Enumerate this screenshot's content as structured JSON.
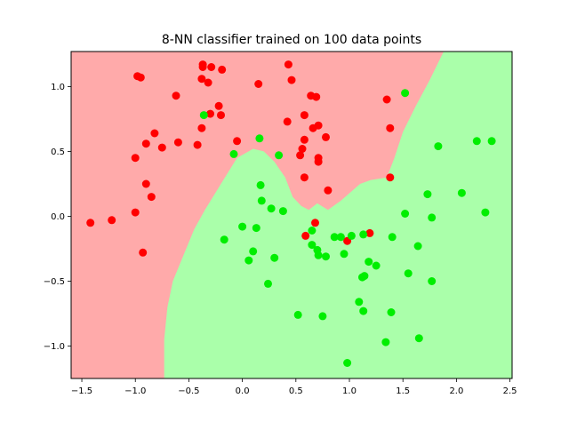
{
  "chart_data": {
    "type": "scatter",
    "title": "8-NN classifier trained on 100 data points",
    "xlabel": "",
    "ylabel": "",
    "xlim": [
      -1.6,
      2.52
    ],
    "ylim": [
      -1.25,
      1.27
    ],
    "x_ticks": [
      -1.5,
      -1.0,
      -0.5,
      0.0,
      0.5,
      1.0,
      1.5,
      2.0,
      2.5
    ],
    "x_tick_labels": [
      "−1.5",
      "−1.0",
      "−0.5",
      "0.0",
      "0.5",
      "1.0",
      "1.5",
      "2.0",
      "2.5"
    ],
    "y_ticks": [
      -1.0,
      -0.5,
      0.0,
      0.5,
      1.0
    ],
    "y_tick_labels": [
      "−1.0",
      "−0.5",
      "0.0",
      "0.5",
      "1.0"
    ],
    "grid": false,
    "legend": "none",
    "background_regions": {
      "class_0_color": "#ffaaaa",
      "class_1_color": "#aaffaa",
      "class_0_region_boundary": [
        [
          -1.6,
          -1.25
        ],
        [
          -0.73,
          -1.25
        ],
        [
          -0.73,
          -0.95
        ],
        [
          -0.7,
          -0.7
        ],
        [
          -0.65,
          -0.5
        ],
        [
          -0.55,
          -0.3
        ],
        [
          -0.45,
          -0.1
        ],
        [
          -0.35,
          0.05
        ],
        [
          -0.2,
          0.25
        ],
        [
          -0.05,
          0.45
        ],
        [
          0.1,
          0.52
        ],
        [
          0.2,
          0.5
        ],
        [
          0.3,
          0.42
        ],
        [
          0.4,
          0.3
        ],
        [
          0.47,
          0.15
        ],
        [
          0.55,
          0.08
        ],
        [
          0.62,
          0.05
        ],
        [
          0.7,
          0.1
        ],
        [
          0.8,
          0.05
        ],
        [
          0.92,
          0.12
        ],
        [
          1.1,
          0.25
        ],
        [
          1.2,
          0.28
        ],
        [
          1.35,
          0.3
        ],
        [
          1.42,
          0.45
        ],
        [
          1.5,
          0.65
        ],
        [
          1.62,
          0.85
        ],
        [
          1.75,
          1.05
        ],
        [
          1.88,
          1.27
        ],
        [
          -1.6,
          1.27
        ]
      ]
    },
    "series": [
      {
        "color": "#ff0000",
        "points": [
          [
            -1.42,
            -0.05
          ],
          [
            -1.22,
            -0.03
          ],
          [
            -1.0,
            0.03
          ],
          [
            -0.93,
            -0.28
          ],
          [
            -0.85,
            0.15
          ],
          [
            -0.9,
            0.25
          ],
          [
            -1.0,
            0.45
          ],
          [
            -0.9,
            0.56
          ],
          [
            -0.82,
            0.64
          ],
          [
            -0.75,
            0.53
          ],
          [
            -0.6,
            0.57
          ],
          [
            -0.42,
            0.55
          ],
          [
            -0.38,
            0.68
          ],
          [
            -0.3,
            0.79
          ],
          [
            -0.2,
            0.78
          ],
          [
            -0.22,
            0.85
          ],
          [
            -0.05,
            0.58
          ],
          [
            -0.62,
            0.93
          ],
          [
            -0.98,
            1.08
          ],
          [
            -0.95,
            1.07
          ],
          [
            -0.38,
            1.06
          ],
          [
            -0.37,
            1.15
          ],
          [
            -0.37,
            1.17
          ],
          [
            -0.32,
            1.03
          ],
          [
            -0.29,
            1.15
          ],
          [
            -0.19,
            1.13
          ],
          [
            0.15,
            1.02
          ],
          [
            0.43,
            1.17
          ],
          [
            0.46,
            1.05
          ],
          [
            0.42,
            0.73
          ],
          [
            0.58,
            0.78
          ],
          [
            0.64,
            0.93
          ],
          [
            0.69,
            0.92
          ],
          [
            0.66,
            0.68
          ],
          [
            0.71,
            0.7
          ],
          [
            0.58,
            0.59
          ],
          [
            0.56,
            0.52
          ],
          [
            0.54,
            0.47
          ],
          [
            0.71,
            0.45
          ],
          [
            0.71,
            0.42
          ],
          [
            0.78,
            0.61
          ],
          [
            0.58,
            0.3
          ],
          [
            0.8,
            0.2
          ],
          [
            1.35,
            0.9
          ],
          [
            1.38,
            0.68
          ],
          [
            1.38,
            0.3
          ],
          [
            0.68,
            -0.05
          ],
          [
            0.59,
            -0.15
          ],
          [
            0.98,
            -0.19
          ],
          [
            1.19,
            -0.13
          ]
        ]
      },
      {
        "color": "#00ee00",
        "points": [
          [
            -0.36,
            0.78
          ],
          [
            -0.08,
            0.48
          ],
          [
            0.16,
            0.6
          ],
          [
            0.34,
            0.47
          ],
          [
            0.17,
            0.24
          ],
          [
            0.18,
            0.12
          ],
          [
            0.27,
            0.06
          ],
          [
            0.38,
            0.04
          ],
          [
            0.0,
            -0.08
          ],
          [
            0.13,
            -0.09
          ],
          [
            -0.17,
            -0.18
          ],
          [
            0.1,
            -0.27
          ],
          [
            0.06,
            -0.34
          ],
          [
            0.3,
            -0.32
          ],
          [
            0.24,
            -0.52
          ],
          [
            0.52,
            -0.76
          ],
          [
            0.65,
            -0.11
          ],
          [
            0.65,
            -0.22
          ],
          [
            0.7,
            -0.26
          ],
          [
            0.71,
            -0.3
          ],
          [
            0.78,
            -0.31
          ],
          [
            0.86,
            -0.16
          ],
          [
            0.92,
            -0.16
          ],
          [
            0.95,
            -0.29
          ],
          [
            1.02,
            -0.15
          ],
          [
            1.13,
            -0.14
          ],
          [
            1.18,
            -0.35
          ],
          [
            1.12,
            -0.47
          ],
          [
            1.14,
            -0.46
          ],
          [
            1.25,
            -0.38
          ],
          [
            1.09,
            -0.66
          ],
          [
            1.13,
            -0.73
          ],
          [
            0.75,
            -0.77
          ],
          [
            0.98,
            -1.13
          ],
          [
            1.39,
            -0.74
          ],
          [
            1.34,
            -0.97
          ],
          [
            1.65,
            -0.94
          ],
          [
            1.55,
            -0.44
          ],
          [
            1.64,
            -0.23
          ],
          [
            1.52,
            0.02
          ],
          [
            1.4,
            -0.16
          ],
          [
            1.52,
            0.95
          ],
          [
            1.73,
            0.17
          ],
          [
            1.77,
            -0.01
          ],
          [
            1.77,
            -0.5
          ],
          [
            1.83,
            0.54
          ],
          [
            2.05,
            0.18
          ],
          [
            2.19,
            0.58
          ],
          [
            2.27,
            0.03
          ],
          [
            2.33,
            0.58
          ]
        ]
      }
    ]
  }
}
